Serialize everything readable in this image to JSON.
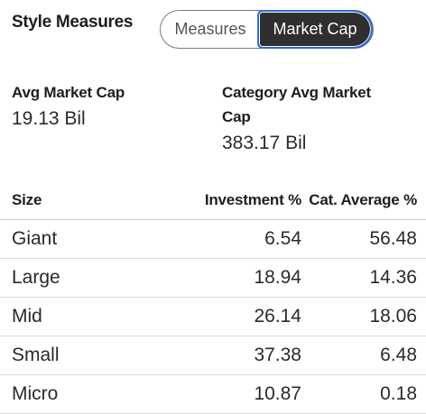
{
  "header": {
    "title": "Style Measures"
  },
  "toggle": {
    "options": [
      "Measures",
      "Market Cap"
    ],
    "selected": "Market Cap",
    "accent_color": "#2b6cd6",
    "selected_bg": "#2f2f2f"
  },
  "stats": {
    "avg_market_cap": {
      "label": "Avg Market Cap",
      "value": "19.13 Bil"
    },
    "category_avg_market_cap": {
      "label_line1": "Category Avg Market",
      "label_line2": "Cap",
      "value": "383.17 Bil"
    }
  },
  "table": {
    "headers": [
      "Size",
      "Investment %",
      "Cat. Average %"
    ],
    "rows": [
      {
        "size": "Giant",
        "investment": "6.54",
        "cat_avg": "56.48"
      },
      {
        "size": "Large",
        "investment": "18.94",
        "cat_avg": "14.36"
      },
      {
        "size": "Mid",
        "investment": "26.14",
        "cat_avg": "18.06"
      },
      {
        "size": "Small",
        "investment": "37.38",
        "cat_avg": "6.48"
      },
      {
        "size": "Micro",
        "investment": "10.87",
        "cat_avg": "0.18"
      }
    ]
  }
}
